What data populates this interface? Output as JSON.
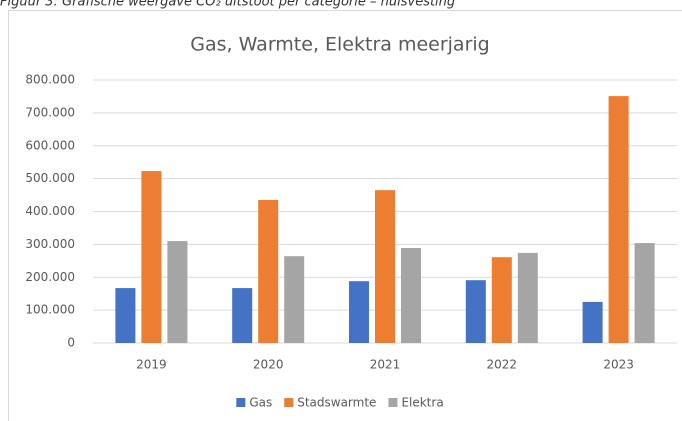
{
  "caption": "Figuur 3: Grafische weergave CO₂ uitstoot per categorie – huisvesting",
  "chart_data": {
    "type": "bar",
    "title": "Gas, Warmte, Elektra meerjarig",
    "categories": [
      "2019",
      "2020",
      "2021",
      "2022",
      "2023"
    ],
    "series": [
      {
        "name": "Gas",
        "color": "#4472c4",
        "values": [
          167000,
          167000,
          188000,
          191000,
          125000
        ]
      },
      {
        "name": "Stadswarmte",
        "color": "#ed7d31",
        "values": [
          523000,
          435000,
          465000,
          261000,
          751000
        ]
      },
      {
        "name": "Elektra",
        "color": "#a5a5a5",
        "values": [
          310000,
          264000,
          289000,
          274000,
          304000
        ]
      }
    ],
    "ylim": [
      0,
      800000
    ],
    "yticks": [
      0,
      {
        "value": 100000,
        "label": "100.000"
      },
      {
        "value": 200000,
        "label": "200.000"
      },
      {
        "value": 300000,
        "label": "300.000"
      },
      {
        "value": 400000,
        "label": "400.000"
      },
      {
        "value": 500000,
        "label": "500.000"
      },
      {
        "value": 600000,
        "label": "600.000"
      },
      {
        "value": 700000,
        "label": "700.000"
      },
      {
        "value": 800000,
        "label": "800.000"
      }
    ],
    "grid": true,
    "legend": "bottom"
  }
}
